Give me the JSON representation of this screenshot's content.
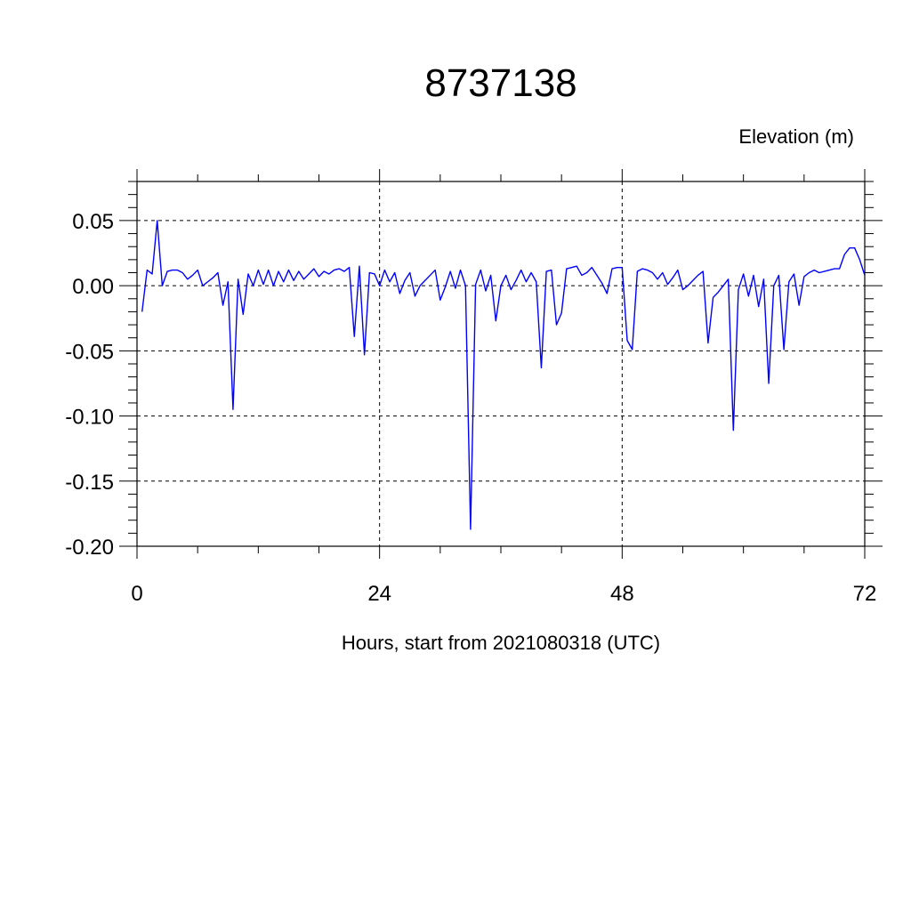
{
  "chart_data": {
    "type": "line",
    "title": "8737138",
    "ylabel": "Elevation (m)",
    "xlabel": "Hours, start from 2021080318 (UTC)",
    "xlim": [
      0,
      72
    ],
    "ylim": [
      -0.2,
      0.08
    ],
    "x_major_ticks": [
      0,
      24,
      48,
      72
    ],
    "x_minor_step": 6,
    "y_major_ticks": [
      0.05,
      0.0,
      -0.05,
      -0.1,
      -0.15,
      -0.2
    ],
    "y_tick_labels": [
      "0.05",
      "0.00",
      "-0.05",
      "-0.10",
      "-0.15",
      "-0.20"
    ],
    "y_minor_step": 0.01,
    "grid": true,
    "line_color": "#0000ff",
    "series": [
      {
        "x": [
          0.5,
          1.0,
          1.5,
          2.0,
          2.5,
          3.0,
          3.5,
          4.0,
          4.5,
          5.0,
          5.5,
          6.0,
          6.5,
          7.0,
          7.5,
          8.0,
          8.5,
          9.0,
          9.5,
          10.0,
          10.5,
          11.0,
          11.5,
          12.0,
          12.5,
          13.0,
          13.5,
          14.0,
          14.5,
          15.0,
          15.5,
          16.0,
          16.5,
          17.0,
          17.5,
          18.0,
          18.5,
          19.0,
          19.5,
          20.0,
          20.5,
          21.0,
          21.5,
          22.0,
          22.5,
          23.0,
          23.5,
          24.0,
          24.5,
          25.0,
          25.5,
          26.0,
          26.5,
          27.0,
          27.5,
          28.0,
          28.5,
          29.0,
          29.5,
          30.0,
          30.5,
          31.0,
          31.5,
          32.0,
          32.5,
          33.0,
          33.5,
          34.0,
          34.5,
          35.0,
          35.5,
          36.0,
          36.5,
          37.0,
          37.5,
          38.0,
          38.5,
          39.0,
          39.5,
          40.0,
          40.5,
          41.0,
          41.5,
          42.0,
          42.5,
          43.0,
          43.5,
          44.0,
          44.5,
          45.0,
          45.5,
          46.0,
          46.5,
          47.0,
          47.5,
          48.0,
          48.5,
          49.0,
          49.5,
          50.0,
          50.5,
          51.0,
          51.5,
          52.0,
          52.5,
          53.0,
          53.5,
          54.0,
          54.5,
          55.0,
          55.5,
          56.0,
          56.5,
          57.0,
          57.5,
          58.0,
          58.5,
          59.0,
          59.5,
          60.0,
          60.5,
          61.0,
          61.5,
          62.0,
          62.5,
          63.0,
          63.5,
          64.0,
          64.5,
          65.0,
          65.5,
          66.0,
          66.5,
          67.0,
          67.5,
          68.0,
          68.5,
          69.0,
          69.5,
          70.0,
          70.5,
          71.0,
          71.5,
          72.0
        ],
        "y": [
          -0.02,
          0.012,
          0.009,
          0.05,
          0.0,
          0.011,
          0.012,
          0.012,
          0.01,
          0.005,
          0.008,
          0.012,
          0.0,
          0.003,
          0.006,
          0.01,
          -0.015,
          0.003,
          -0.095,
          0.005,
          -0.022,
          0.009,
          0.0,
          0.012,
          0.001,
          0.012,
          0.0,
          0.011,
          0.003,
          0.012,
          0.004,
          0.011,
          0.005,
          0.009,
          0.013,
          0.007,
          0.011,
          0.009,
          0.012,
          0.013,
          0.011,
          0.014,
          -0.039,
          0.015,
          -0.053,
          0.01,
          0.009,
          0.0,
          0.012,
          0.003,
          0.01,
          -0.006,
          0.004,
          0.01,
          -0.008,
          0.0,
          0.004,
          0.008,
          0.012,
          -0.011,
          -0.001,
          0.011,
          -0.002,
          0.012,
          0.0,
          -0.187,
          0.001,
          0.012,
          -0.004,
          0.008,
          -0.027,
          0.0,
          0.008,
          -0.003,
          0.004,
          0.012,
          0.003,
          0.01,
          0.003,
          -0.063,
          0.011,
          0.012,
          -0.03,
          -0.021,
          0.013,
          0.014,
          0.015,
          0.008,
          0.01,
          0.014,
          0.008,
          0.002,
          -0.006,
          0.013,
          0.014,
          0.014,
          -0.042,
          -0.049,
          0.011,
          0.013,
          0.012,
          0.01,
          0.005,
          0.01,
          0.001,
          0.006,
          0.012,
          -0.003,
          0.0,
          0.004,
          0.008,
          0.011,
          -0.044,
          -0.009,
          -0.005,
          0.0,
          0.005,
          -0.111,
          -0.003,
          0.009,
          -0.008,
          0.008,
          -0.016,
          0.005,
          -0.075,
          0.0,
          0.008,
          -0.049,
          0.003,
          0.009,
          -0.015,
          0.007,
          0.01,
          0.012,
          0.01,
          0.011,
          0.012,
          0.013,
          0.013,
          0.024,
          0.029,
          0.029,
          0.02,
          0.008
        ]
      }
    ]
  }
}
